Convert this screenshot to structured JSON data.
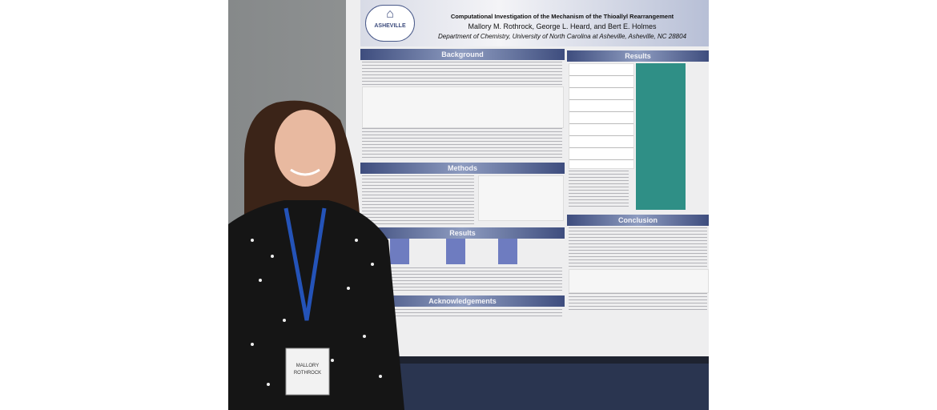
{
  "poster": {
    "logo_text": "ASHEVILLE",
    "title": "Computational Investigation of the Mechanism of the Thioallyl Rearrangement",
    "authors": "Mallory M. Rothrock, George L. Heard, and Bert E. Holmes",
    "department": "Department of Chemistry, University of North Carolina at Asheville, Asheville, NC 28804",
    "left_sections": [
      "Background",
      "Methods",
      "Results",
      "Acknowledgements"
    ],
    "right_sections": [
      "Results",
      "Conclusion"
    ]
  },
  "badge": {
    "first_name": "MALLORY",
    "last_name": "ROTHROCK"
  }
}
